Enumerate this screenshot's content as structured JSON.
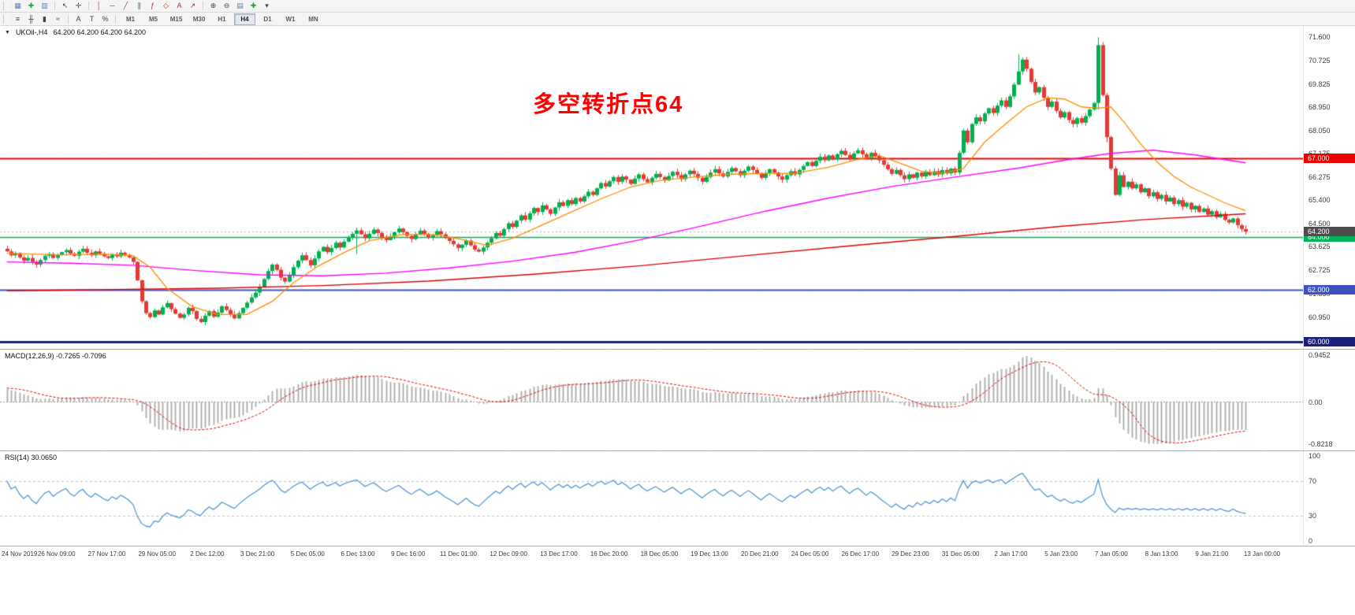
{
  "toolbar": {
    "row1": [
      {
        "name": "chart-grid-icon",
        "glyph": "▦",
        "color": "#5a7fb0"
      },
      {
        "name": "new-order-icon",
        "glyph": "✚",
        "color": "#1f9d3a"
      },
      {
        "name": "chart-window-icon",
        "glyph": "▥",
        "color": "#5a7fb0"
      },
      {
        "name": "separator"
      },
      {
        "name": "cursor-icon",
        "glyph": "↖",
        "color": "#444444"
      },
      {
        "name": "crosshair-icon",
        "glyph": "✛",
        "color": "#444444"
      },
      {
        "name": "separator"
      },
      {
        "name": "vertical-line-icon",
        "glyph": "│",
        "color": "#a93226"
      },
      {
        "name": "horizontal-line-icon",
        "glyph": "─",
        "color": "#a93226"
      },
      {
        "name": "trendline-icon",
        "glyph": "╱",
        "color": "#a93226"
      },
      {
        "name": "channel-icon",
        "glyph": "∥",
        "color": "#a93226"
      },
      {
        "name": "fibonacci-icon",
        "glyph": "ƒ",
        "color": "#a93226"
      },
      {
        "name": "shapes-icon",
        "glyph": "◇",
        "color": "#a93226"
      },
      {
        "name": "text-icon",
        "glyph": "A",
        "color": "#a93226"
      },
      {
        "name": "arrow-icon",
        "glyph": "↗",
        "color": "#a93226"
      },
      {
        "name": "separator"
      },
      {
        "name": "zoom-in-icon",
        "glyph": "⊕",
        "color": "#444444"
      },
      {
        "name": "zoom-out-icon",
        "glyph": "⊖",
        "color": "#444444"
      },
      {
        "name": "tile-windows-icon",
        "glyph": "▤",
        "color": "#5a7fb0"
      },
      {
        "name": "indicators-icon",
        "glyph": "✚",
        "color": "#1f9d3a"
      },
      {
        "name": "templates-icon",
        "glyph": "▾",
        "color": "#444444"
      }
    ],
    "row2_icons": [
      {
        "name": "menu-icon",
        "glyph": "≡",
        "color": "#444444"
      },
      {
        "name": "bar-chart-icon",
        "glyph": "╫",
        "color": "#444444"
      },
      {
        "name": "candlestick-chart-icon",
        "glyph": "▮",
        "color": "#444444"
      },
      {
        "name": "line-chart-icon",
        "glyph": "≈",
        "color": "#444444"
      },
      {
        "name": "separator"
      },
      {
        "name": "auto-scroll-icon",
        "glyph": "A",
        "color": "#444444"
      },
      {
        "name": "chart-shift-icon",
        "glyph": "T",
        "color": "#444444"
      },
      {
        "name": "zoom-percent-icon",
        "glyph": "%",
        "color": "#444444"
      },
      {
        "name": "separator"
      }
    ],
    "timeframes": {
      "items": [
        "M1",
        "M5",
        "M15",
        "M30",
        "H1",
        "H4",
        "D1",
        "W1",
        "MN"
      ],
      "active": "H4"
    }
  },
  "chart": {
    "symbol_label": "UKOil-,H4",
    "ohlc_label": "64.200 64.200 64.200 64.200",
    "annotation": {
      "text": "多空转折点64",
      "color": "#ff0000"
    },
    "price_axis_labels": [
      "71.600",
      "70.725",
      "69.825",
      "68.950",
      "68.050",
      "67.175",
      "66.275",
      "65.400",
      "64.500",
      "63.625",
      "62.725",
      "61.850",
      "60.950"
    ],
    "hlines": [
      {
        "value": 67.0,
        "label": "67.000",
        "color": "#e80000",
        "width": 2
      },
      {
        "value": 64.0,
        "label": "64.000",
        "color": "#00b45a",
        "width": 1.5
      },
      {
        "value": 62.0,
        "label": "62.000",
        "color": "#3f51c1",
        "width": 2
      },
      {
        "value": 60.0,
        "label": "60.000",
        "color": "#1a1f7a",
        "width": 3
      }
    ],
    "current_price": {
      "value": 64.2,
      "label": "64.200",
      "color": "#4d4d4d"
    },
    "colors": {
      "bull": "#00b050",
      "bear": "#e53935",
      "ma_fast": "#ff8c00",
      "ma_mid": "#ff00ff",
      "ma_slow": "#e00000",
      "grid": "#ebebeb",
      "macd_bar": "#a9a9a9",
      "macd_signal": "#dd0000",
      "rsi_line": "#4a8fd4",
      "rsi_level": "#b6bfd4"
    }
  },
  "chart_data": {
    "type": "candlestick+indicators",
    "symbol": "UKOil-",
    "timeframe": "H4",
    "price_range": {
      "min": 59.92,
      "max": 71.85
    },
    "first_open": 63.55,
    "prehistory_closes": [
      62.2,
      62.26,
      62.32,
      62.4,
      62.35,
      62.5,
      62.6,
      62.55,
      62.7,
      62.8,
      62.75,
      62.9,
      63.0,
      62.95,
      63.05,
      63.15,
      63.1,
      63.2,
      63.3,
      63.25,
      63.35,
      63.3,
      63.4,
      63.45,
      63.4,
      63.5,
      63.45,
      63.5,
      63.55,
      63.55
    ],
    "closes": [
      63.45,
      63.3,
      63.38,
      63.22,
      63.1,
      63.2,
      63.05,
      62.95,
      63.12,
      63.28,
      63.35,
      63.2,
      63.32,
      63.42,
      63.5,
      63.36,
      63.28,
      63.44,
      63.55,
      63.4,
      63.3,
      63.45,
      63.36,
      63.26,
      63.2,
      63.34,
      63.26,
      63.4,
      63.32,
      63.22,
      63.05,
      62.35,
      61.55,
      61.1,
      60.95,
      61.2,
      61.05,
      61.32,
      61.48,
      61.25,
      61.08,
      60.92,
      61.05,
      61.3,
      61.18,
      60.88,
      60.76,
      61.0,
      61.18,
      60.96,
      61.12,
      61.36,
      61.22,
      61.05,
      60.9,
      61.1,
      61.3,
      61.5,
      61.7,
      61.88,
      62.1,
      62.4,
      62.7,
      62.95,
      62.75,
      62.45,
      62.3,
      62.55,
      62.85,
      63.1,
      63.3,
      63.12,
      62.92,
      63.18,
      63.45,
      63.62,
      63.42,
      63.58,
      63.78,
      63.6,
      63.82,
      63.98,
      64.12,
      64.25,
      64.1,
      63.95,
      64.12,
      64.28,
      64.15,
      64.0,
      63.88,
      64.02,
      64.18,
      64.32,
      64.18,
      64.04,
      63.92,
      64.1,
      64.24,
      64.12,
      63.98,
      64.06,
      64.22,
      64.1,
      63.96,
      63.85,
      63.72,
      63.58,
      63.7,
      63.86,
      63.68,
      63.52,
      63.44,
      63.6,
      63.78,
      63.95,
      64.15,
      64.05,
      64.3,
      64.52,
      64.38,
      64.62,
      64.82,
      64.66,
      64.9,
      65.1,
      64.95,
      65.2,
      65.05,
      64.88,
      65.12,
      65.32,
      65.18,
      65.4,
      65.25,
      65.48,
      65.35,
      65.55,
      65.72,
      65.6,
      65.85,
      66.05,
      65.92,
      66.12,
      66.28,
      66.1,
      66.3,
      66.18,
      66.02,
      66.22,
      66.38,
      66.2,
      66.08,
      66.25,
      66.4,
      66.28,
      66.15,
      66.32,
      66.48,
      66.35,
      66.2,
      66.38,
      66.52,
      66.4,
      66.25,
      66.1,
      66.28,
      66.45,
      66.58,
      66.42,
      66.3,
      66.48,
      66.62,
      66.5,
      66.35,
      66.52,
      66.68,
      66.55,
      66.4,
      66.25,
      66.42,
      66.58,
      66.45,
      66.3,
      66.18,
      66.35,
      66.5,
      66.38,
      66.55,
      66.7,
      66.85,
      66.7,
      66.9,
      67.05,
      66.92,
      67.1,
      66.95,
      67.15,
      67.28,
      67.12,
      66.98,
      67.18,
      67.3,
      67.15,
      67.0,
      67.2,
      67.08,
      66.92,
      66.75,
      66.58,
      66.4,
      66.55,
      66.35,
      66.2,
      66.38,
      66.25,
      66.45,
      66.3,
      66.48,
      66.35,
      66.5,
      66.38,
      66.55,
      66.42,
      66.6,
      66.45,
      67.2,
      68.05,
      67.6,
      68.3,
      68.55,
      68.4,
      68.7,
      68.9,
      68.72,
      69.0,
      69.2,
      68.95,
      69.35,
      69.8,
      70.3,
      70.75,
      70.4,
      69.9,
      69.5,
      69.7,
      69.3,
      68.95,
      69.15,
      68.8,
      68.55,
      68.75,
      68.45,
      68.3,
      68.52,
      68.35,
      68.6,
      68.85,
      69.1,
      71.3,
      69.4,
      67.8,
      66.6,
      65.6,
      66.35,
      65.9,
      66.1,
      65.85,
      66.0,
      65.7,
      65.85,
      65.55,
      65.7,
      65.45,
      65.6,
      65.35,
      65.5,
      65.25,
      65.4,
      65.15,
      65.3,
      65.05,
      65.18,
      64.95,
      65.08,
      64.85,
      64.98,
      64.75,
      64.88,
      64.65,
      64.55,
      64.7,
      64.45,
      64.3,
      64.2
    ],
    "wick_overrides": {
      "46": {
        "l": 60.72
      },
      "83": {
        "l": 63.35
      },
      "226": {
        "l": 66.35
      },
      "240": {
        "h": 70.95
      },
      "259": {
        "h": 71.6,
        "l": 68.85
      },
      "261": {
        "l": 67.6
      }
    },
    "ma_fast_waypoints": [
      [
        0,
        63.38
      ],
      [
        12,
        63.32
      ],
      [
        24,
        63.34
      ],
      [
        30,
        63.28
      ],
      [
        34,
        62.85
      ],
      [
        38,
        62.05
      ],
      [
        44,
        61.35
      ],
      [
        50,
        61.05
      ],
      [
        57,
        61.05
      ],
      [
        63,
        61.55
      ],
      [
        68,
        62.25
      ],
      [
        74,
        62.9
      ],
      [
        80,
        63.4
      ],
      [
        86,
        63.85
      ],
      [
        94,
        64.1
      ],
      [
        102,
        64.08
      ],
      [
        108,
        63.9
      ],
      [
        114,
        63.68
      ],
      [
        120,
        63.95
      ],
      [
        127,
        64.45
      ],
      [
        134,
        64.95
      ],
      [
        141,
        65.45
      ],
      [
        148,
        65.9
      ],
      [
        155,
        66.15
      ],
      [
        163,
        66.28
      ],
      [
        171,
        66.38
      ],
      [
        179,
        66.42
      ],
      [
        187,
        66.42
      ],
      [
        195,
        66.65
      ],
      [
        202,
        66.95
      ],
      [
        207,
        67.1
      ],
      [
        212,
        66.8
      ],
      [
        217,
        66.5
      ],
      [
        222,
        66.42
      ],
      [
        227,
        66.6
      ],
      [
        232,
        67.6
      ],
      [
        237,
        68.3
      ],
      [
        242,
        68.95
      ],
      [
        247,
        69.3
      ],
      [
        251,
        69.25
      ],
      [
        255,
        68.95
      ],
      [
        259,
        68.9
      ],
      [
        262,
        68.95
      ],
      [
        265,
        68.4
      ],
      [
        269,
        67.55
      ],
      [
        273,
        66.85
      ],
      [
        277,
        66.3
      ],
      [
        281,
        65.9
      ],
      [
        285,
        65.6
      ],
      [
        289,
        65.3
      ],
      [
        294,
        65.0
      ]
    ],
    "ma_mid_waypoints": [
      [
        0,
        63.05
      ],
      [
        15,
        63.0
      ],
      [
        30,
        62.92
      ],
      [
        45,
        62.72
      ],
      [
        60,
        62.56
      ],
      [
        75,
        62.52
      ],
      [
        90,
        62.62
      ],
      [
        105,
        62.82
      ],
      [
        120,
        63.08
      ],
      [
        135,
        63.42
      ],
      [
        150,
        63.88
      ],
      [
        165,
        64.42
      ],
      [
        180,
        64.98
      ],
      [
        195,
        65.48
      ],
      [
        210,
        65.92
      ],
      [
        225,
        66.28
      ],
      [
        240,
        66.62
      ],
      [
        252,
        66.95
      ],
      [
        262,
        67.18
      ],
      [
        272,
        67.3
      ],
      [
        282,
        67.12
      ],
      [
        294,
        66.82
      ]
    ],
    "ma_slow_waypoints": [
      [
        0,
        61.95
      ],
      [
        25,
        62.0
      ],
      [
        50,
        62.05
      ],
      [
        75,
        62.15
      ],
      [
        100,
        62.32
      ],
      [
        125,
        62.58
      ],
      [
        150,
        62.9
      ],
      [
        175,
        63.28
      ],
      [
        200,
        63.66
      ],
      [
        225,
        64.02
      ],
      [
        250,
        64.4
      ],
      [
        270,
        64.66
      ],
      [
        294,
        64.88
      ]
    ],
    "x_labels": [
      "24 Nov 2019",
      "26 Nov 09:00",
      "27 Nov 17:00",
      "29 Nov 05:00",
      "2 Dec 12:00",
      "3 Dec 21:00",
      "5 Dec 05:00",
      "6 Dec 13:00",
      "9 Dec 16:00",
      "11 Dec 01:00",
      "12 Dec 09:00",
      "13 Dec 17:00",
      "16 Dec 20:00",
      "18 Dec 05:00",
      "19 Dec 13:00",
      "20 Dec 21:00",
      "24 Dec 05:00",
      "26 Dec 17:00",
      "29 Dec 23:00",
      "31 Dec 05:00",
      "2 Jan 17:00",
      "5 Jan 23:00",
      "7 Jan 05:00",
      "8 Jan 13:00",
      "9 Jan 21:00",
      "13 Jan 00:00"
    ],
    "macd": {
      "label": "MACD(12,26,9) -0.7265 -0.7096",
      "params": [
        12,
        26,
        9
      ],
      "axis_top": "0.9452",
      "axis_zero": "0.00",
      "axis_bottom": "-0.8218"
    },
    "rsi": {
      "label": "RSI(14) 30.0650",
      "period": 14,
      "axis_labels": [
        "100",
        "70",
        "30",
        "0"
      ],
      "levels": [
        70,
        30
      ]
    }
  }
}
